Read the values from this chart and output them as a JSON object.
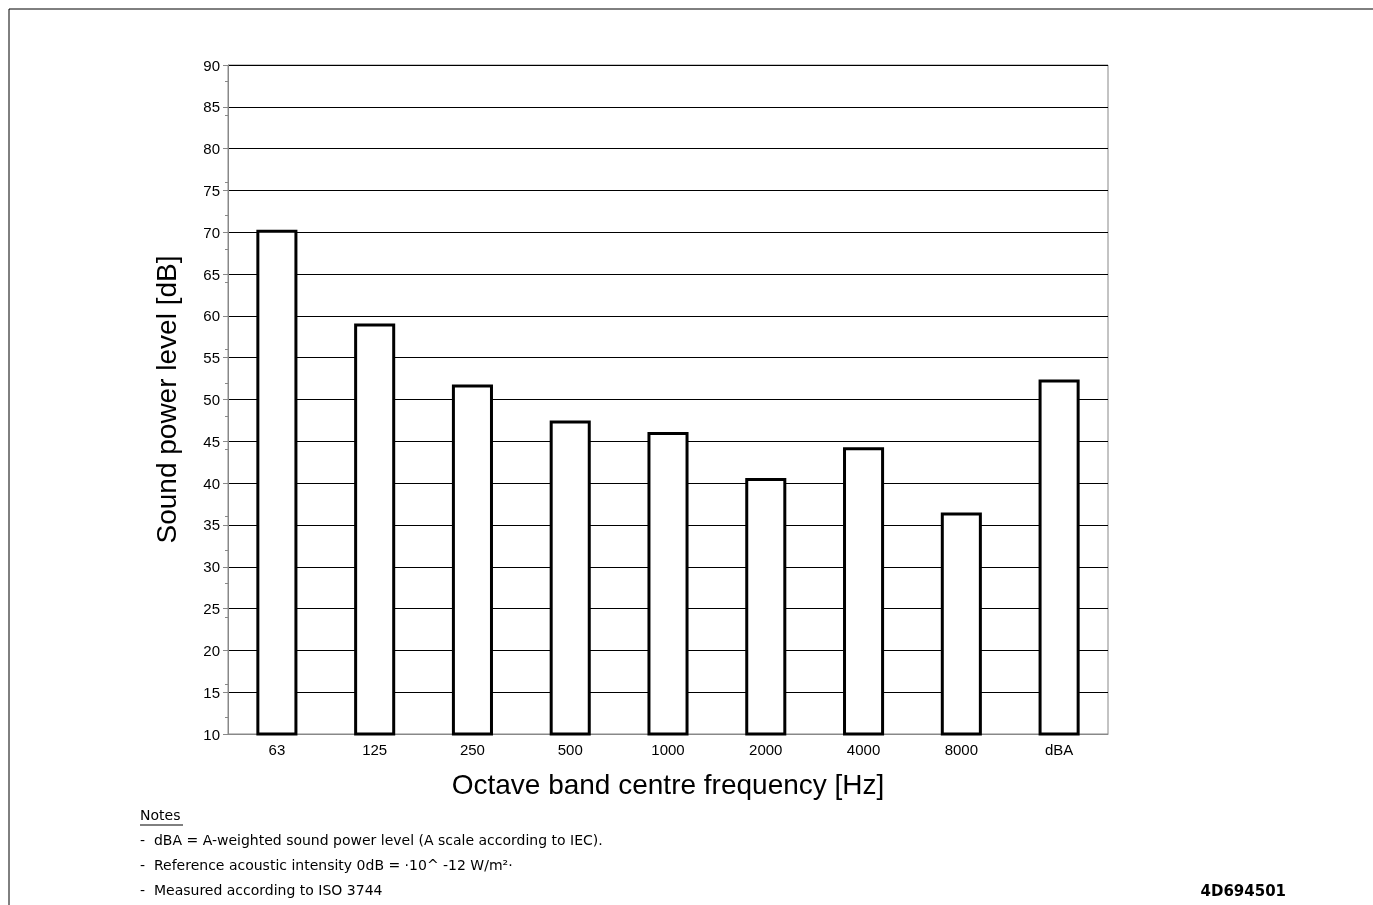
{
  "chart_data": {
    "type": "bar",
    "xlabel": "Octave band centre frequency [Hz]",
    "ylabel": "Sound power level [dB]",
    "categories": [
      "63",
      "125",
      "250",
      "500",
      "1000",
      "2000",
      "4000",
      "8000",
      "dBA"
    ],
    "values": [
      70.3,
      59.1,
      51.8,
      47.5,
      46.1,
      40.6,
      44.3,
      36.5,
      52.4
    ],
    "color": "#ffffff",
    "ylim": [
      10,
      90
    ],
    "yticks": [
      10,
      15,
      20,
      25,
      30,
      35,
      40,
      45,
      50,
      55,
      60,
      65,
      70,
      75,
      80,
      85,
      90
    ],
    "grid": "y",
    "annotations": [
      "Notes",
      "-  dBA = A-weighted sound power level (A scale according to IEC).",
      "-  Reference acoustic intensity 0dB = ·10^ -12 W/m²·",
      "-  Measured according to ISO 3744",
      "4D694501"
    ]
  }
}
